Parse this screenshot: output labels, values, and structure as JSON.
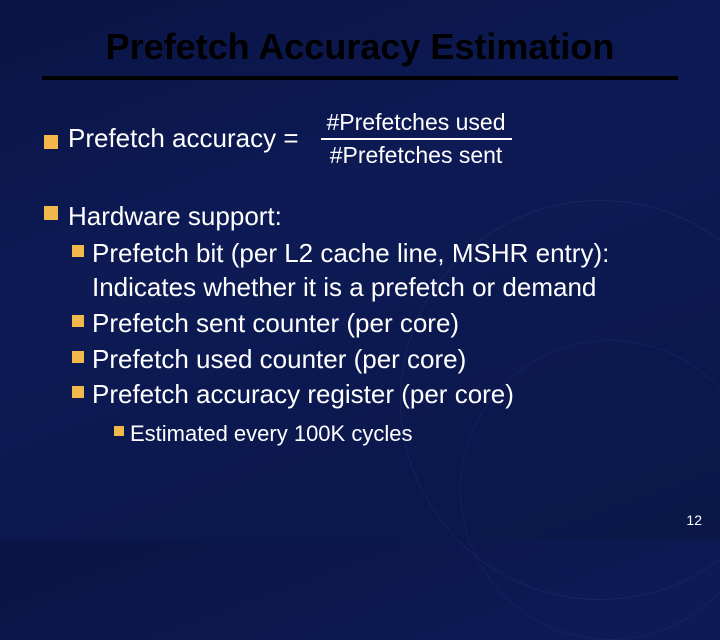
{
  "title": "Prefetch Accuracy Estimation",
  "equation": {
    "lhs": "Prefetch accuracy =",
    "numerator": "#Prefetches used",
    "denominator": "#Prefetches sent"
  },
  "hardware": {
    "header": "Hardware support:",
    "items": [
      "Prefetch bit (per L2 cache line, MSHR entry): Indicates whether it is a prefetch or demand",
      "Prefetch sent counter (per core)",
      "Prefetch used counter (per core)",
      "Prefetch accuracy register (per core)"
    ],
    "note": "Estimated every 100K cycles"
  },
  "page_number": "12",
  "colors": {
    "bullet": "#f2b84b",
    "title_text": "#000000",
    "body_text": "#ffffff"
  }
}
